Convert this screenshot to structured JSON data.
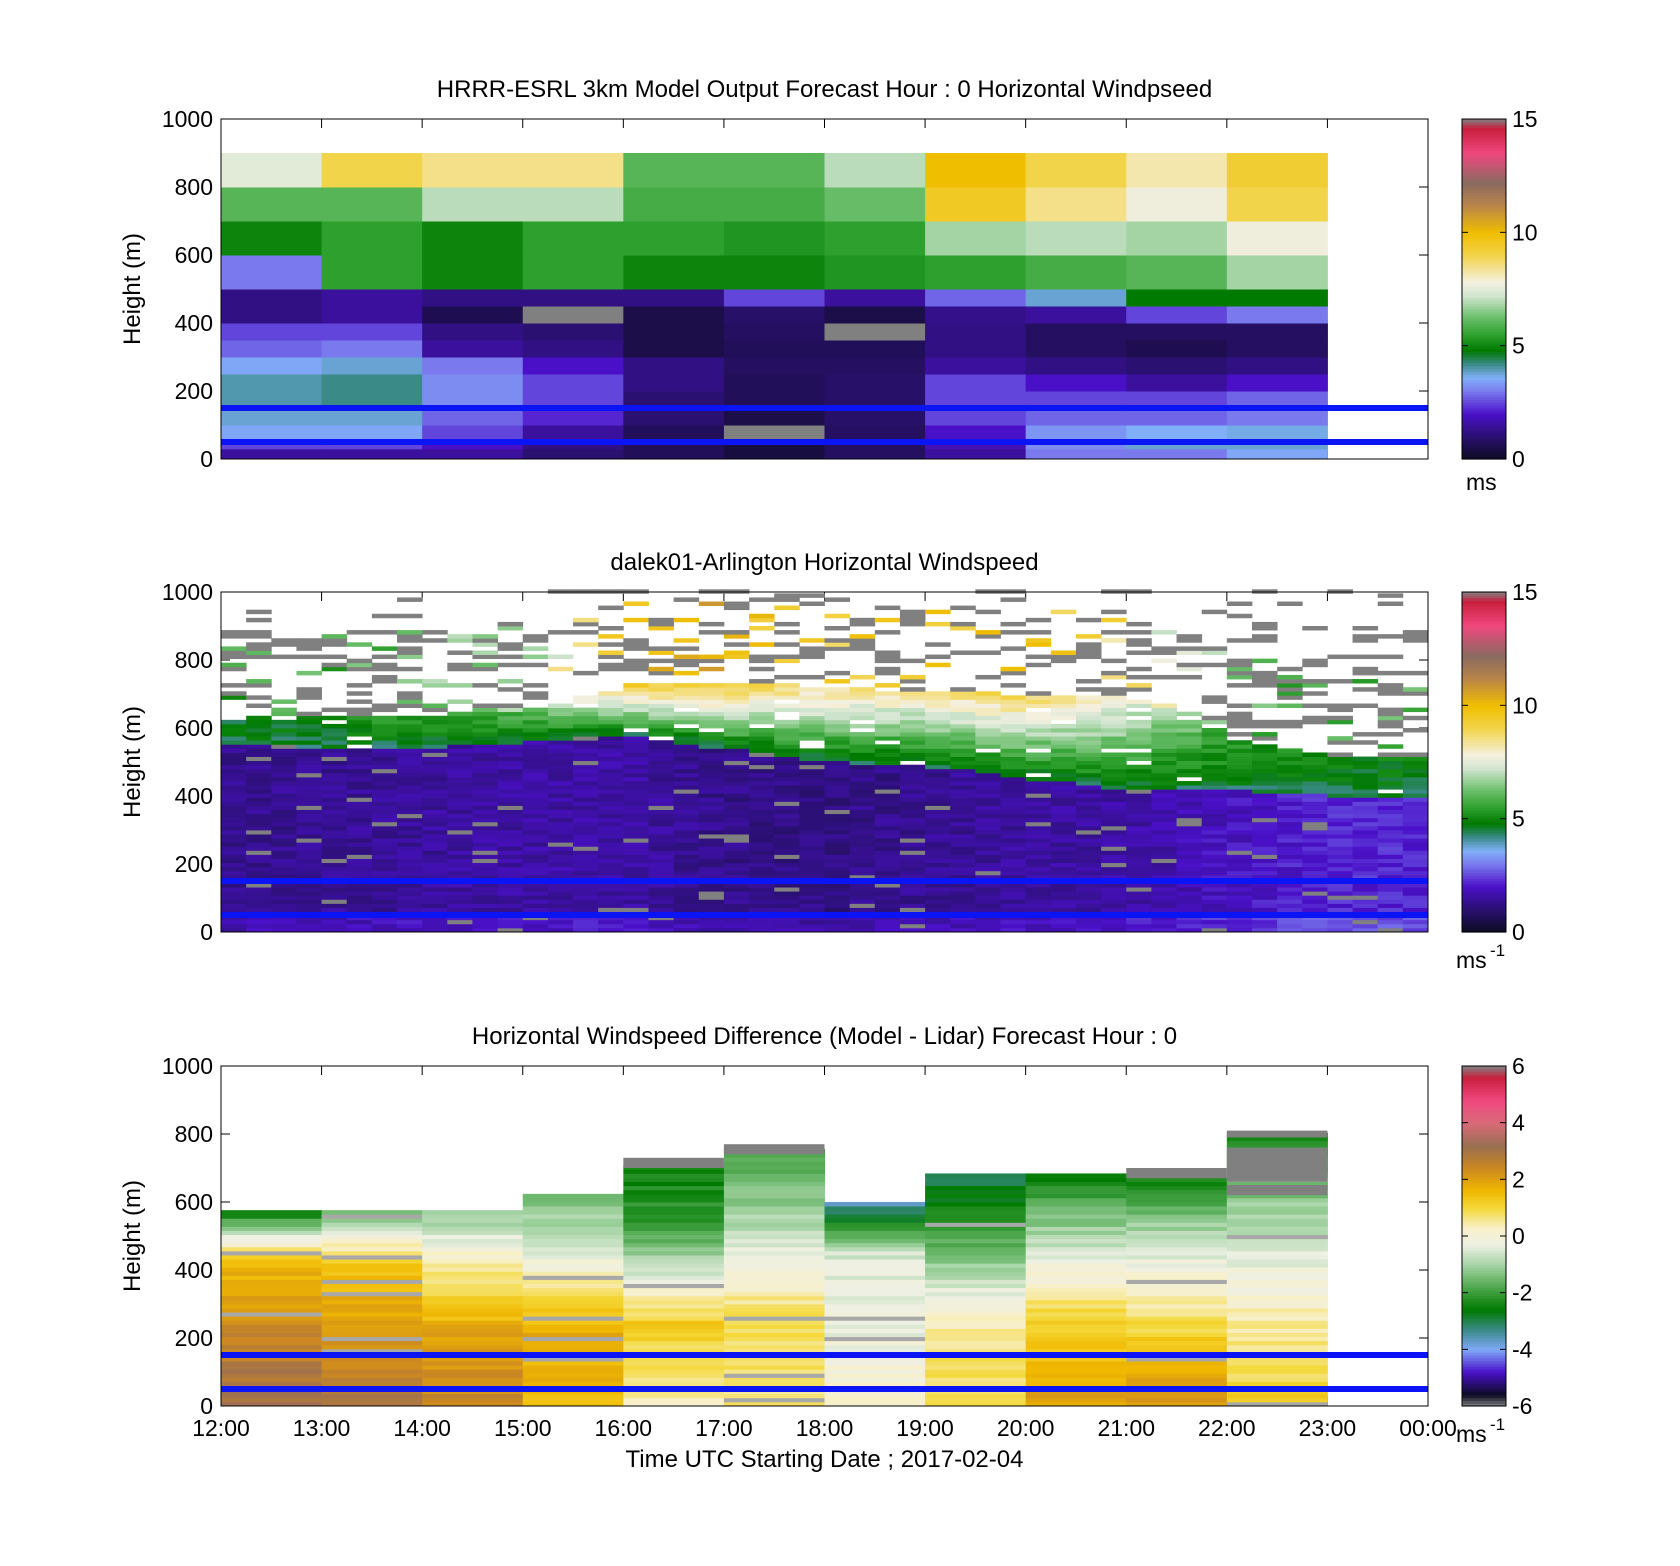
{
  "chart_data": [
    {
      "type": "heatmap",
      "title": "HRRR-ESRL 3km Model Output   Forecast Hour : 0 Horizontal Windpseed",
      "ylabel": "Height (m)",
      "ylim": [
        0,
        1000
      ],
      "yticks": [
        "0",
        "200",
        "400",
        "600",
        "800",
        "1000"
      ],
      "xlim": [
        12,
        24
      ],
      "data_x_end": 23,
      "x_tick_labels": [],
      "colorbar": {
        "min": 0,
        "max": 15,
        "ticks": [
          "0",
          "5",
          "10",
          "15"
        ],
        "unit": "ms",
        "unit_sup": ""
      },
      "reference_lines_m": [
        50,
        150
      ],
      "band_edges_m": [
        0,
        30,
        60,
        100,
        150,
        200,
        250,
        300,
        350,
        400,
        450,
        500,
        600,
        700,
        800,
        900,
        1000
      ],
      "columns": [
        {
          "hour": 12,
          "values": [
            1.5,
            2.5,
            3.5,
            3.8,
            4.0,
            4.0,
            3.5,
            2.8,
            2.5,
            1.2,
            1.2,
            3.0,
            5.0,
            6.0,
            7.5,
            null
          ]
        },
        {
          "hour": 13,
          "values": [
            1.5,
            2.5,
            3.5,
            3.8,
            4.2,
            4.2,
            3.8,
            3.0,
            2.5,
            1.5,
            1.5,
            5.5,
            5.5,
            6.0,
            9.0,
            null
          ]
        },
        {
          "hour": 14,
          "values": [
            1.5,
            2.0,
            2.5,
            2.8,
            3.2,
            3.2,
            3.0,
            1.5,
            1.2,
            0.6,
            1.2,
            5.0,
            5.0,
            7.0,
            8.5,
            null
          ]
        },
        {
          "hour": 15,
          "values": [
            1.0,
            1.2,
            1.5,
            2.2,
            2.5,
            2.5,
            2.0,
            1.2,
            1.0,
            null,
            1.2,
            5.5,
            5.5,
            7.0,
            8.5,
            null
          ]
        },
        {
          "hour": 16,
          "values": [
            0.7,
            0.7,
            0.7,
            1.0,
            1.0,
            1.2,
            1.2,
            0.5,
            0.5,
            0.5,
            1.2,
            5.0,
            5.5,
            5.8,
            6.0,
            null
          ]
        },
        {
          "hour": 17,
          "values": [
            0.4,
            0.4,
            null,
            0.5,
            0.7,
            0.7,
            0.8,
            0.7,
            0.8,
            0.9,
            2.5,
            5.0,
            5.3,
            5.8,
            6.0,
            null
          ]
        },
        {
          "hour": 18,
          "values": [
            0.8,
            0.8,
            0.8,
            0.9,
            0.9,
            0.9,
            0.8,
            0.7,
            null,
            0.5,
            1.5,
            5.3,
            5.5,
            6.2,
            7.0,
            null
          ]
        },
        {
          "hour": 19,
          "values": [
            1.5,
            1.8,
            2.0,
            2.5,
            2.5,
            2.5,
            1.5,
            1.2,
            1.2,
            1.3,
            2.8,
            5.5,
            6.8,
            9.5,
            10.0,
            null
          ]
        },
        {
          "hour": 20,
          "values": [
            3.0,
            3.2,
            3.3,
            2.8,
            2.5,
            2.0,
            1.2,
            0.8,
            0.8,
            1.5,
            3.8,
            5.8,
            7.0,
            8.5,
            9.0,
            null
          ]
        },
        {
          "hour": 21,
          "values": [
            3.0,
            3.8,
            3.6,
            2.8,
            2.5,
            1.5,
            1.0,
            0.6,
            0.8,
            2.5,
            4.8,
            6.0,
            6.8,
            7.7,
            8.2,
            null
          ]
        },
        {
          "hour": 22,
          "values": [
            3.5,
            3.8,
            3.7,
            3.0,
            2.8,
            2.0,
            1.2,
            0.8,
            0.8,
            3.0,
            4.8,
            6.8,
            7.7,
            9.0,
            9.3,
            null
          ]
        }
      ]
    },
    {
      "type": "heatmap",
      "title": "dalek01-Arlington  Horizontal Windspeed",
      "ylabel": "Height (m)",
      "ylim": [
        0,
        1000
      ],
      "yticks": [
        "0",
        "200",
        "400",
        "600",
        "800",
        "1000"
      ],
      "xlim": [
        12,
        24
      ],
      "x_tick_labels": [],
      "colorbar": {
        "min": 0,
        "max": 15,
        "ticks": [
          "0",
          "5",
          "10",
          "15"
        ],
        "unit": "ms",
        "unit_sup": "-1"
      },
      "reference_lines_m": [
        50,
        150
      ],
      "hourly_profile_summary": [
        {
          "hour": 12.0,
          "mixed_top_m": 560,
          "jet_top_m": 640,
          "low_speed": 1.3,
          "jet_speed": 4.8
        },
        {
          "hour": 13.0,
          "mixed_top_m": 540,
          "jet_top_m": 630,
          "low_speed": 1.4,
          "jet_speed": 5.0
        },
        {
          "hour": 14.0,
          "mixed_top_m": 540,
          "jet_top_m": 640,
          "low_speed": 1.5,
          "jet_speed": 5.5
        },
        {
          "hour": 15.0,
          "mixed_top_m": 560,
          "jet_top_m": 650,
          "low_speed": 1.6,
          "jet_speed": 6.0
        },
        {
          "hour": 16.0,
          "mixed_top_m": 580,
          "jet_top_m": 720,
          "low_speed": 1.6,
          "jet_speed": 9.0
        },
        {
          "hour": 17.0,
          "mixed_top_m": 540,
          "jet_top_m": 740,
          "low_speed": 1.3,
          "jet_speed": 9.5
        },
        {
          "hour": 18.0,
          "mixed_top_m": 500,
          "jet_top_m": 720,
          "low_speed": 1.2,
          "jet_speed": 8.5
        },
        {
          "hour": 19.0,
          "mixed_top_m": 490,
          "jet_top_m": 710,
          "low_speed": 1.4,
          "jet_speed": 8.5
        },
        {
          "hour": 20.0,
          "mixed_top_m": 450,
          "jet_top_m": 700,
          "low_speed": 1.5,
          "jet_speed": 9.0
        },
        {
          "hour": 21.0,
          "mixed_top_m": 420,
          "jet_top_m": 700,
          "low_speed": 1.6,
          "jet_speed": 8.0
        },
        {
          "hour": 22.0,
          "mixed_top_m": 420,
          "jet_top_m": 580,
          "low_speed": 1.9,
          "jet_speed": 5.5
        },
        {
          "hour": 23.0,
          "mixed_top_m": 400,
          "jet_top_m": 520,
          "low_speed": 2.2,
          "jet_speed": 5.0
        }
      ]
    },
    {
      "type": "heatmap",
      "title": "Horizontal Windspeed Difference (Model - Lidar) Forecast Hour : 0",
      "xlabel": "Time UTC  Starting Date ; 2017-02-04",
      "ylabel": "Height (m)",
      "ylim": [
        0,
        1000
      ],
      "yticks": [
        "0",
        "200",
        "400",
        "600",
        "800",
        "1000"
      ],
      "xlim": [
        12,
        24
      ],
      "x_tick_labels": [
        "12:00",
        "13:00",
        "14:00",
        "15:00",
        "16:00",
        "17:00",
        "18:00",
        "19:00",
        "20:00",
        "21:00",
        "22:00",
        "23:00",
        "00:00"
      ],
      "colorbar": {
        "min": -6,
        "max": 6,
        "ticks": [
          "-6",
          "-4",
          "-2",
          "0",
          "2",
          "4",
          "6"
        ],
        "unit": "ms",
        "unit_sup": "-1"
      },
      "reference_lines_m": [
        50,
        150
      ],
      "hourly_profile_summary": [
        {
          "hour": 12.0,
          "top_m": 570,
          "top_diff": -2.5,
          "low_diff": 3.2,
          "mid_diff": 2.5,
          "upper_diff": 1.5
        },
        {
          "hour": 13.0,
          "top_m": 570,
          "top_diff": -1.5,
          "low_diff": 3.0,
          "mid_diff": 2.2,
          "upper_diff": 1.2
        },
        {
          "hour": 14.0,
          "top_m": 570,
          "top_diff": -1.2,
          "low_diff": 2.5,
          "mid_diff": 2.0,
          "upper_diff": 0.3
        },
        {
          "hour": 15.0,
          "top_m": 620,
          "top_diff": -1.5,
          "low_diff": 1.5,
          "mid_diff": 1.8,
          "upper_diff": -0.5
        },
        {
          "hour": 16.0,
          "top_m": 700,
          "top_diff": -2.5,
          "low_diff": 0.3,
          "mid_diff": 1.2,
          "upper_diff": -2.0
        },
        {
          "hour": 17.0,
          "top_m": 750,
          "top_diff": -2.0,
          "low_diff": 0.7,
          "mid_diff": 0.8,
          "upper_diff": -1.0
        },
        {
          "hour": 18.0,
          "top_m": 590,
          "top_diff": -3.5,
          "low_diff": 0.3,
          "mid_diff": -0.3,
          "upper_diff": -0.5
        },
        {
          "hour": 19.0,
          "top_m": 680,
          "top_diff": -3.0,
          "low_diff": 1.0,
          "mid_diff": 0.5,
          "upper_diff": -2.0
        },
        {
          "hour": 20.0,
          "top_m": 680,
          "top_diff": -2.5,
          "low_diff": 2.0,
          "mid_diff": 1.2,
          "upper_diff": -1.0
        },
        {
          "hour": 21.0,
          "top_m": 670,
          "top_diff": -2.5,
          "low_diff": 2.2,
          "mid_diff": 1.0,
          "upper_diff": -0.8
        },
        {
          "hour": 22.0,
          "top_m": 800,
          "top_diff": -2.5,
          "low_diff": 1.2,
          "mid_diff": 0.3,
          "upper_diff": -1.2
        }
      ]
    }
  ]
}
